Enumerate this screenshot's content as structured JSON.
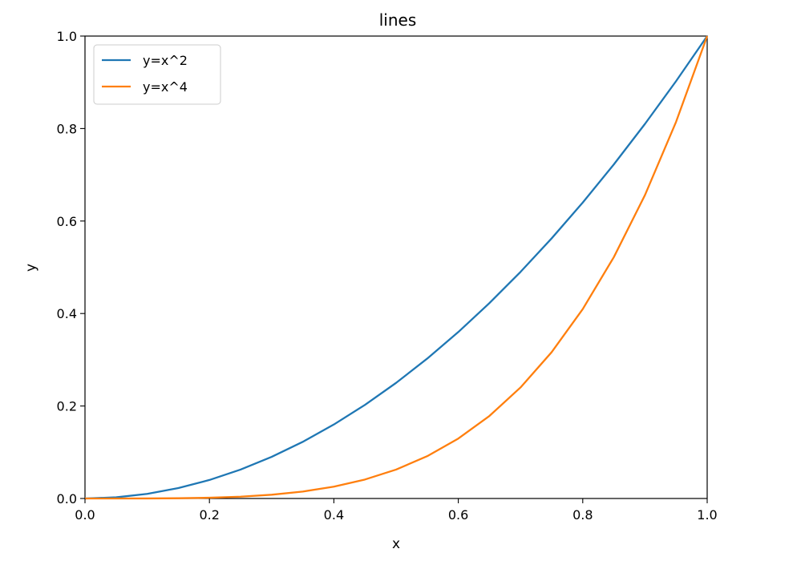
{
  "chart_data": {
    "type": "line",
    "title": "lines",
    "xlabel": "x",
    "ylabel": "y",
    "xlim": [
      0.0,
      1.0
    ],
    "ylim": [
      0.0,
      1.0
    ],
    "x_ticks": [
      "0.0",
      "0.2",
      "0.4",
      "0.6",
      "0.8",
      "1.0"
    ],
    "y_ticks": [
      "0.0",
      "0.2",
      "0.4",
      "0.6",
      "0.8",
      "1.0"
    ],
    "grid": false,
    "legend_position": "top-left",
    "series": [
      {
        "name": "y=x^2",
        "color": "#1f77b4",
        "x": [
          0.0,
          0.05,
          0.1,
          0.15,
          0.2,
          0.25,
          0.3,
          0.35,
          0.4,
          0.45,
          0.5,
          0.55,
          0.6,
          0.65,
          0.7,
          0.75,
          0.8,
          0.85,
          0.9,
          0.95,
          1.0
        ],
        "y": [
          0.0,
          0.0025,
          0.01,
          0.0225,
          0.04,
          0.0625,
          0.09,
          0.1225,
          0.16,
          0.2025,
          0.25,
          0.3025,
          0.36,
          0.4225,
          0.49,
          0.5625,
          0.64,
          0.7225,
          0.81,
          0.9025,
          1.0
        ]
      },
      {
        "name": "y=x^4",
        "color": "#ff7f0e",
        "x": [
          0.0,
          0.05,
          0.1,
          0.15,
          0.2,
          0.25,
          0.3,
          0.35,
          0.4,
          0.45,
          0.5,
          0.55,
          0.6,
          0.65,
          0.7,
          0.75,
          0.8,
          0.85,
          0.9,
          0.95,
          1.0
        ],
        "y": [
          0.0,
          6.3e-06,
          0.0001,
          0.0005,
          0.0016,
          0.0039,
          0.0081,
          0.015,
          0.0256,
          0.041,
          0.0625,
          0.0915,
          0.1296,
          0.1785,
          0.2401,
          0.3164,
          0.4096,
          0.522,
          0.6561,
          0.8145,
          1.0
        ]
      }
    ]
  }
}
